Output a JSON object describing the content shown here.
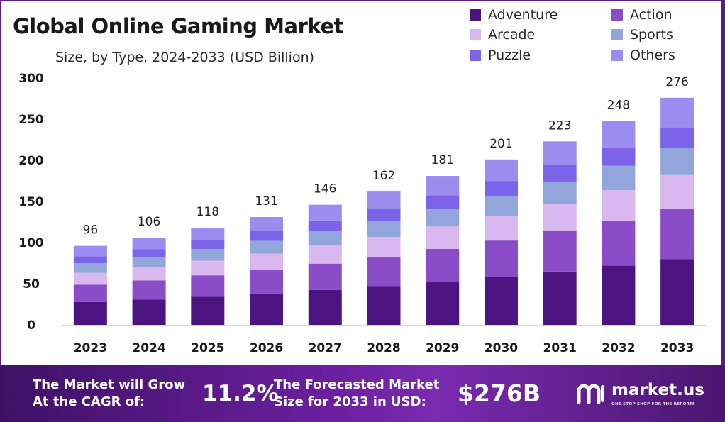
{
  "header": {
    "title": "Global Online Gaming Market",
    "subtitle": "Size, by Type, 2024-2033 (USD Billion)"
  },
  "legend": {
    "items": [
      {
        "label": "Adventure",
        "color": "#4b1480"
      },
      {
        "label": "Action",
        "color": "#8a4cc7"
      },
      {
        "label": "Arcade",
        "color": "#d9b8ef"
      },
      {
        "label": "Sports",
        "color": "#93a6dc"
      },
      {
        "label": "Puzzle",
        "color": "#7b63ea"
      },
      {
        "label": "Others",
        "color": "#9b8cf0"
      }
    ]
  },
  "chart_data": {
    "type": "bar",
    "stacked": true,
    "title": "Global Online Gaming Market",
    "subtitle": "Size, by Type, 2024-2033 (USD Billion)",
    "categories": [
      "2023",
      "2024",
      "2025",
      "2026",
      "2027",
      "2028",
      "2029",
      "2030",
      "2031",
      "2032",
      "2033"
    ],
    "totals": [
      96,
      106,
      118,
      131,
      146,
      162,
      181,
      201,
      223,
      248,
      276
    ],
    "series": [
      {
        "name": "Adventure",
        "color": "#4b1480",
        "values": [
          27.8,
          30.7,
          34.2,
          38.0,
          42.3,
          47.0,
          52.5,
          58.3,
          64.7,
          71.9,
          80.0
        ]
      },
      {
        "name": "Action",
        "color": "#8a4cc7",
        "values": [
          21.1,
          23.3,
          26.0,
          28.8,
          32.1,
          35.6,
          39.8,
          44.2,
          49.1,
          54.6,
          60.7
        ]
      },
      {
        "name": "Arcade",
        "color": "#d9b8ef",
        "values": [
          14.4,
          15.9,
          17.7,
          19.7,
          21.9,
          24.3,
          27.2,
          30.2,
          33.5,
          37.2,
          41.4
        ]
      },
      {
        "name": "Sports",
        "color": "#93a6dc",
        "values": [
          11.5,
          12.7,
          14.2,
          15.7,
          17.5,
          19.4,
          21.7,
          24.1,
          26.8,
          29.8,
          33.1
        ]
      },
      {
        "name": "Puzzle",
        "color": "#7b63ea",
        "values": [
          8.6,
          9.5,
          10.6,
          11.8,
          13.1,
          14.6,
          16.3,
          18.1,
          20.1,
          22.3,
          24.8
        ]
      },
      {
        "name": "Others",
        "color": "#9b8cf0",
        "values": [
          12.6,
          13.9,
          15.3,
          17.0,
          19.1,
          21.1,
          23.5,
          26.1,
          28.8,
          32.2,
          36.0
        ]
      }
    ],
    "yticks": [
      0,
      50,
      100,
      150,
      200,
      250,
      300
    ],
    "ylim": [
      0,
      300
    ],
    "grid": false,
    "legend_position": "top-right"
  },
  "footer": {
    "cagr_line1": "The Market will Grow",
    "cagr_line2": "At the CAGR of:",
    "cagr_value": "11.2%",
    "forecast_line1": "The Forecasted Market",
    "forecast_line2": "Size for 2033 in USD:",
    "forecast_value": "$276B",
    "brand_name": "market.us",
    "brand_tagline": "ONE STOP SHOP FOR THE REPORTS"
  }
}
